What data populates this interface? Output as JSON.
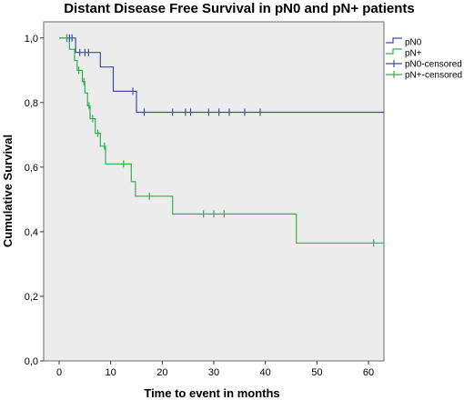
{
  "chart_data": {
    "type": "line",
    "title": "Distant Disease Free Survival in pN0 and pN+ patients",
    "xlabel": "Time to event in months",
    "ylabel": "Cumulative Survival",
    "xlim": [
      -3,
      63
    ],
    "ylim": [
      0,
      1.05
    ],
    "xticks": [
      0,
      10,
      20,
      30,
      40,
      50,
      60
    ],
    "yticks": [
      0.0,
      0.2,
      0.4,
      0.6,
      0.8,
      1.0
    ],
    "ytick_labels": [
      "0,0",
      "0,2",
      "0,4",
      "0,6",
      "0,8",
      "1,0"
    ],
    "background": "#ececec",
    "grid": false,
    "legend_position": "top-right",
    "legend": [
      "pN0",
      "pN+",
      "pN0-censored",
      "pN+-censored"
    ],
    "series": [
      {
        "name": "pN0",
        "color": "#3a4fa3",
        "steps": [
          [
            0,
            1.0
          ],
          [
            3.2,
            1.0
          ],
          [
            3.2,
            0.955
          ],
          [
            8.0,
            0.955
          ],
          [
            8.0,
            0.91
          ],
          [
            10.5,
            0.91
          ],
          [
            10.5,
            0.835
          ],
          [
            15.0,
            0.835
          ],
          [
            15.0,
            0.77
          ],
          [
            63,
            0.77
          ]
        ],
        "censored": [
          [
            1.5,
            1.0
          ],
          [
            2.0,
            1.0
          ],
          [
            2.5,
            1.0
          ],
          [
            4.0,
            0.955
          ],
          [
            5.0,
            0.955
          ],
          [
            5.7,
            0.955
          ],
          [
            14.3,
            0.835
          ],
          [
            16.5,
            0.77
          ],
          [
            22.0,
            0.77
          ],
          [
            24.5,
            0.77
          ],
          [
            25.5,
            0.77
          ],
          [
            29.0,
            0.77
          ],
          [
            31.0,
            0.77
          ],
          [
            33.0,
            0.77
          ],
          [
            36.0,
            0.77
          ],
          [
            39.0,
            0.77
          ]
        ]
      },
      {
        "name": "pN+",
        "color": "#2db34a",
        "steps": [
          [
            0,
            1.0
          ],
          [
            2.0,
            1.0
          ],
          [
            2.0,
            0.965
          ],
          [
            3.0,
            0.965
          ],
          [
            3.0,
            0.93
          ],
          [
            3.5,
            0.93
          ],
          [
            3.5,
            0.9
          ],
          [
            4.5,
            0.9
          ],
          [
            4.5,
            0.865
          ],
          [
            5.0,
            0.865
          ],
          [
            5.0,
            0.83
          ],
          [
            5.5,
            0.83
          ],
          [
            5.5,
            0.79
          ],
          [
            6.0,
            0.79
          ],
          [
            6.0,
            0.75
          ],
          [
            7.0,
            0.75
          ],
          [
            7.0,
            0.705
          ],
          [
            8.0,
            0.705
          ],
          [
            8.0,
            0.665
          ],
          [
            9.0,
            0.665
          ],
          [
            9.0,
            0.61
          ],
          [
            14.0,
            0.61
          ],
          [
            14.0,
            0.555
          ],
          [
            14.8,
            0.555
          ],
          [
            14.8,
            0.51
          ],
          [
            22.0,
            0.51
          ],
          [
            22.0,
            0.455
          ],
          [
            46.0,
            0.455
          ],
          [
            46.0,
            0.365
          ],
          [
            63,
            0.365
          ]
        ],
        "censored": [
          [
            1.5,
            1.0
          ],
          [
            3.8,
            0.9
          ],
          [
            4.8,
            0.865
          ],
          [
            5.8,
            0.79
          ],
          [
            6.5,
            0.75
          ],
          [
            7.5,
            0.705
          ],
          [
            8.8,
            0.665
          ],
          [
            12.5,
            0.61
          ],
          [
            17.5,
            0.51
          ],
          [
            28.0,
            0.455
          ],
          [
            30.0,
            0.455
          ],
          [
            32.0,
            0.455
          ],
          [
            61.0,
            0.365
          ]
        ]
      }
    ]
  }
}
